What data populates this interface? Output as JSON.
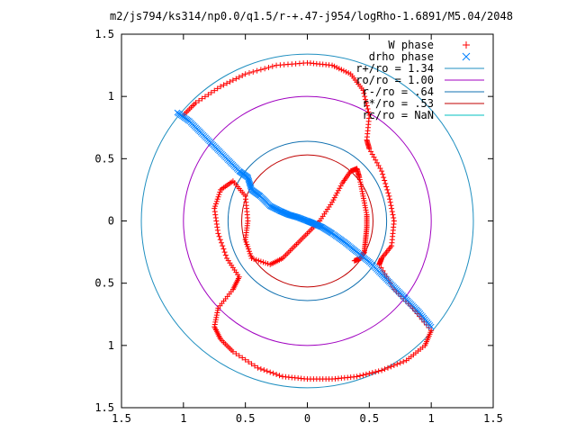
{
  "chart_data": {
    "type": "scatter",
    "title": "m2/js794/ks314/np0.0/q1.5/r-+.47-j954/logRho-1.6891/M5.04/2048",
    "xlabel": "",
    "ylabel": "",
    "xlim": [
      -1.5,
      1.5
    ],
    "ylim": [
      -1.5,
      1.5
    ],
    "x_ticks": [
      -1.5,
      -1,
      -0.5,
      0,
      0.5,
      1,
      1.5
    ],
    "y_ticks": [
      -1.5,
      -1,
      -0.5,
      0,
      0.5,
      1,
      1.5
    ],
    "x_tick_labels": [
      "1.5",
      "1",
      "0.5",
      "0",
      "0.5",
      "1",
      "1.5"
    ],
    "y_tick_labels": [
      "1.5",
      "1",
      "0.5",
      "0",
      "0.5",
      "1",
      "1.5"
    ],
    "grid": false,
    "legend_position": "top-right",
    "legend": [
      {
        "label": "W phase",
        "marker": "+",
        "color": "#ff0000"
      },
      {
        "label": "drho phase",
        "marker": "x",
        "color": "#0080ff"
      },
      {
        "label": "r+/ro = 1.34",
        "marker": "line",
        "color": "#1f8fc0"
      },
      {
        "label": "ro/ro = 1.00",
        "marker": "line",
        "color": "#a000c0"
      },
      {
        "label": "r-/ro = .64",
        "marker": "line",
        "color": "#1070b0"
      },
      {
        "label": "r*/ro = .53",
        "marker": "line",
        "color": "#c00000"
      },
      {
        "label": "rc/ro = NaN",
        "marker": "line",
        "color": "#00c0c0"
      }
    ],
    "circles": [
      {
        "name": "r+/ro",
        "radius": 1.34,
        "color": "#1f8fc0"
      },
      {
        "name": "ro/ro",
        "radius": 1.0,
        "color": "#a000c0"
      },
      {
        "name": "r-/ro",
        "radius": 0.64,
        "color": "#1070b0"
      },
      {
        "name": "r*/ro",
        "radius": 0.53,
        "color": "#c00000"
      }
    ],
    "series": [
      {
        "name": "W phase",
        "color": "#ff0000",
        "marker": "+",
        "x": [
          -1.0,
          -0.9,
          -0.7,
          -0.5,
          -0.25,
          0.0,
          0.2,
          0.35,
          0.45,
          0.5,
          0.48,
          0.5,
          0.6,
          0.66,
          0.7,
          0.68,
          0.6,
          0.58,
          0.7,
          0.85,
          1.0,
          0.95,
          0.8,
          0.6,
          0.4,
          0.2,
          0.0,
          -0.2,
          -0.4,
          -0.6,
          -0.7,
          -0.75,
          -0.72,
          -0.6,
          -0.55,
          -0.65,
          -0.72,
          -0.75,
          -0.7,
          -0.6,
          -0.5,
          -0.48,
          -0.5,
          -0.45,
          -0.3,
          -0.2,
          -0.1,
          0.0,
          0.1,
          0.2,
          0.28,
          0.35,
          0.4,
          0.42,
          0.45,
          0.48,
          0.48,
          0.47,
          0.46,
          0.43,
          0.38
        ],
        "y": [
          0.85,
          0.95,
          1.08,
          1.18,
          1.25,
          1.27,
          1.25,
          1.18,
          1.05,
          0.85,
          0.65,
          0.58,
          0.4,
          0.2,
          0.0,
          -0.2,
          -0.3,
          -0.35,
          -0.55,
          -0.7,
          -0.88,
          -1.0,
          -1.12,
          -1.2,
          -1.25,
          -1.27,
          -1.27,
          -1.25,
          -1.18,
          -1.05,
          -0.95,
          -0.85,
          -0.7,
          -0.55,
          -0.45,
          -0.3,
          -0.1,
          0.1,
          0.25,
          0.32,
          0.2,
          0.0,
          -0.15,
          -0.3,
          -0.35,
          -0.3,
          -0.2,
          -0.1,
          0.0,
          0.15,
          0.3,
          0.4,
          0.42,
          0.35,
          0.2,
          0.05,
          -0.05,
          -0.15,
          -0.25,
          -0.3,
          -0.32
        ]
      },
      {
        "name": "drho phase",
        "color": "#0080ff",
        "marker": "x",
        "x": [
          -1.05,
          -0.95,
          -0.85,
          -0.75,
          -0.65,
          -0.55,
          -0.48,
          -0.45,
          -0.38,
          -0.3,
          -0.22,
          -0.15,
          -0.08,
          0.0,
          0.05,
          0.12,
          0.2,
          0.3,
          0.4,
          0.5,
          0.6,
          0.7,
          0.8,
          0.9,
          1.0
        ],
        "y": [
          0.87,
          0.8,
          0.7,
          0.6,
          0.5,
          0.4,
          0.35,
          0.25,
          0.2,
          0.12,
          0.08,
          0.05,
          0.03,
          0.0,
          -0.02,
          -0.05,
          -0.1,
          -0.17,
          -0.25,
          -0.33,
          -0.43,
          -0.53,
          -0.63,
          -0.73,
          -0.85
        ]
      }
    ]
  }
}
